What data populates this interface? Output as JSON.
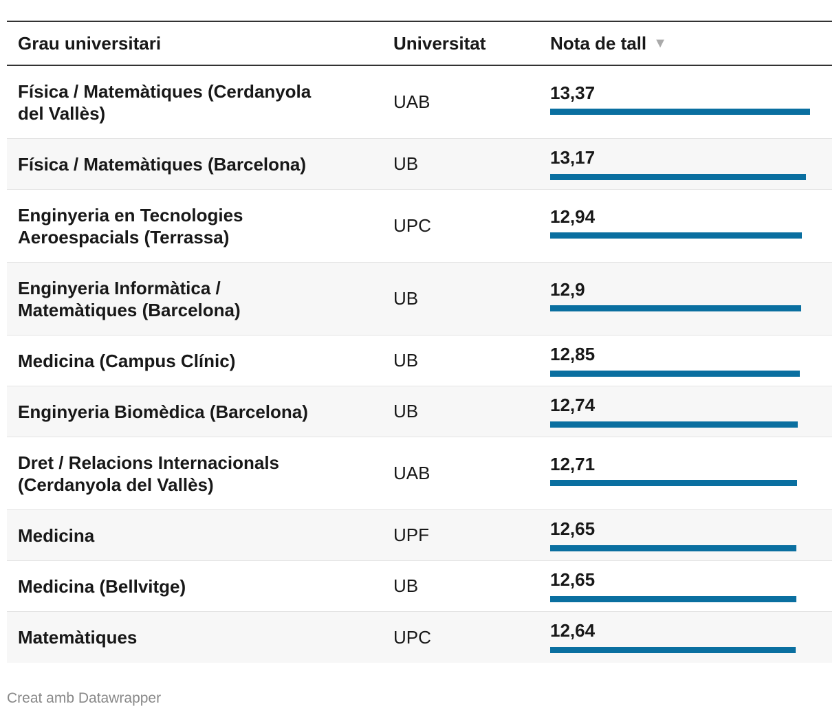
{
  "chart_data": {
    "type": "table",
    "columns": [
      "Grau universitari",
      "Universitat",
      "Nota de tall"
    ],
    "sort_indicator": "▼",
    "rows": [
      {
        "grau": "Física / Matemàtiques (Cerdanyola del Vallès)",
        "universitat": "UAB",
        "nota": 13.37,
        "nota_label": "13,37"
      },
      {
        "grau": "Física / Matemàtiques (Barcelona)",
        "universitat": "UB",
        "nota": 13.17,
        "nota_label": "13,17"
      },
      {
        "grau": "Enginyeria en Tecnologies Aeroespacials (Terrassa)",
        "universitat": "UPC",
        "nota": 12.94,
        "nota_label": "12,94"
      },
      {
        "grau": "Enginyeria Informàtica / Matemàtiques (Barcelona)",
        "universitat": "UB",
        "nota": 12.9,
        "nota_label": "12,9"
      },
      {
        "grau": "Medicina (Campus Clínic)",
        "universitat": "UB",
        "nota": 12.85,
        "nota_label": "12,85"
      },
      {
        "grau": "Enginyeria Biomèdica (Barcelona)",
        "universitat": "UB",
        "nota": 12.74,
        "nota_label": "12,74"
      },
      {
        "grau": "Dret / Relacions Internacionals (Cerdanyola del Vallès)",
        "universitat": "UAB",
        "nota": 12.71,
        "nota_label": "12,71"
      },
      {
        "grau": "Medicina",
        "universitat": "UPF",
        "nota": 12.65,
        "nota_label": "12,65"
      },
      {
        "grau": "Medicina (Bellvitge)",
        "universitat": "UB",
        "nota": 12.65,
        "nota_label": "12,65"
      },
      {
        "grau": "Matemàtiques",
        "universitat": "UPC",
        "nota": 12.64,
        "nota_label": "12,64"
      }
    ],
    "bar_scale_max": 14,
    "bar_color": "#0a6fa0"
  },
  "footer": "Creat amb Datawrapper"
}
